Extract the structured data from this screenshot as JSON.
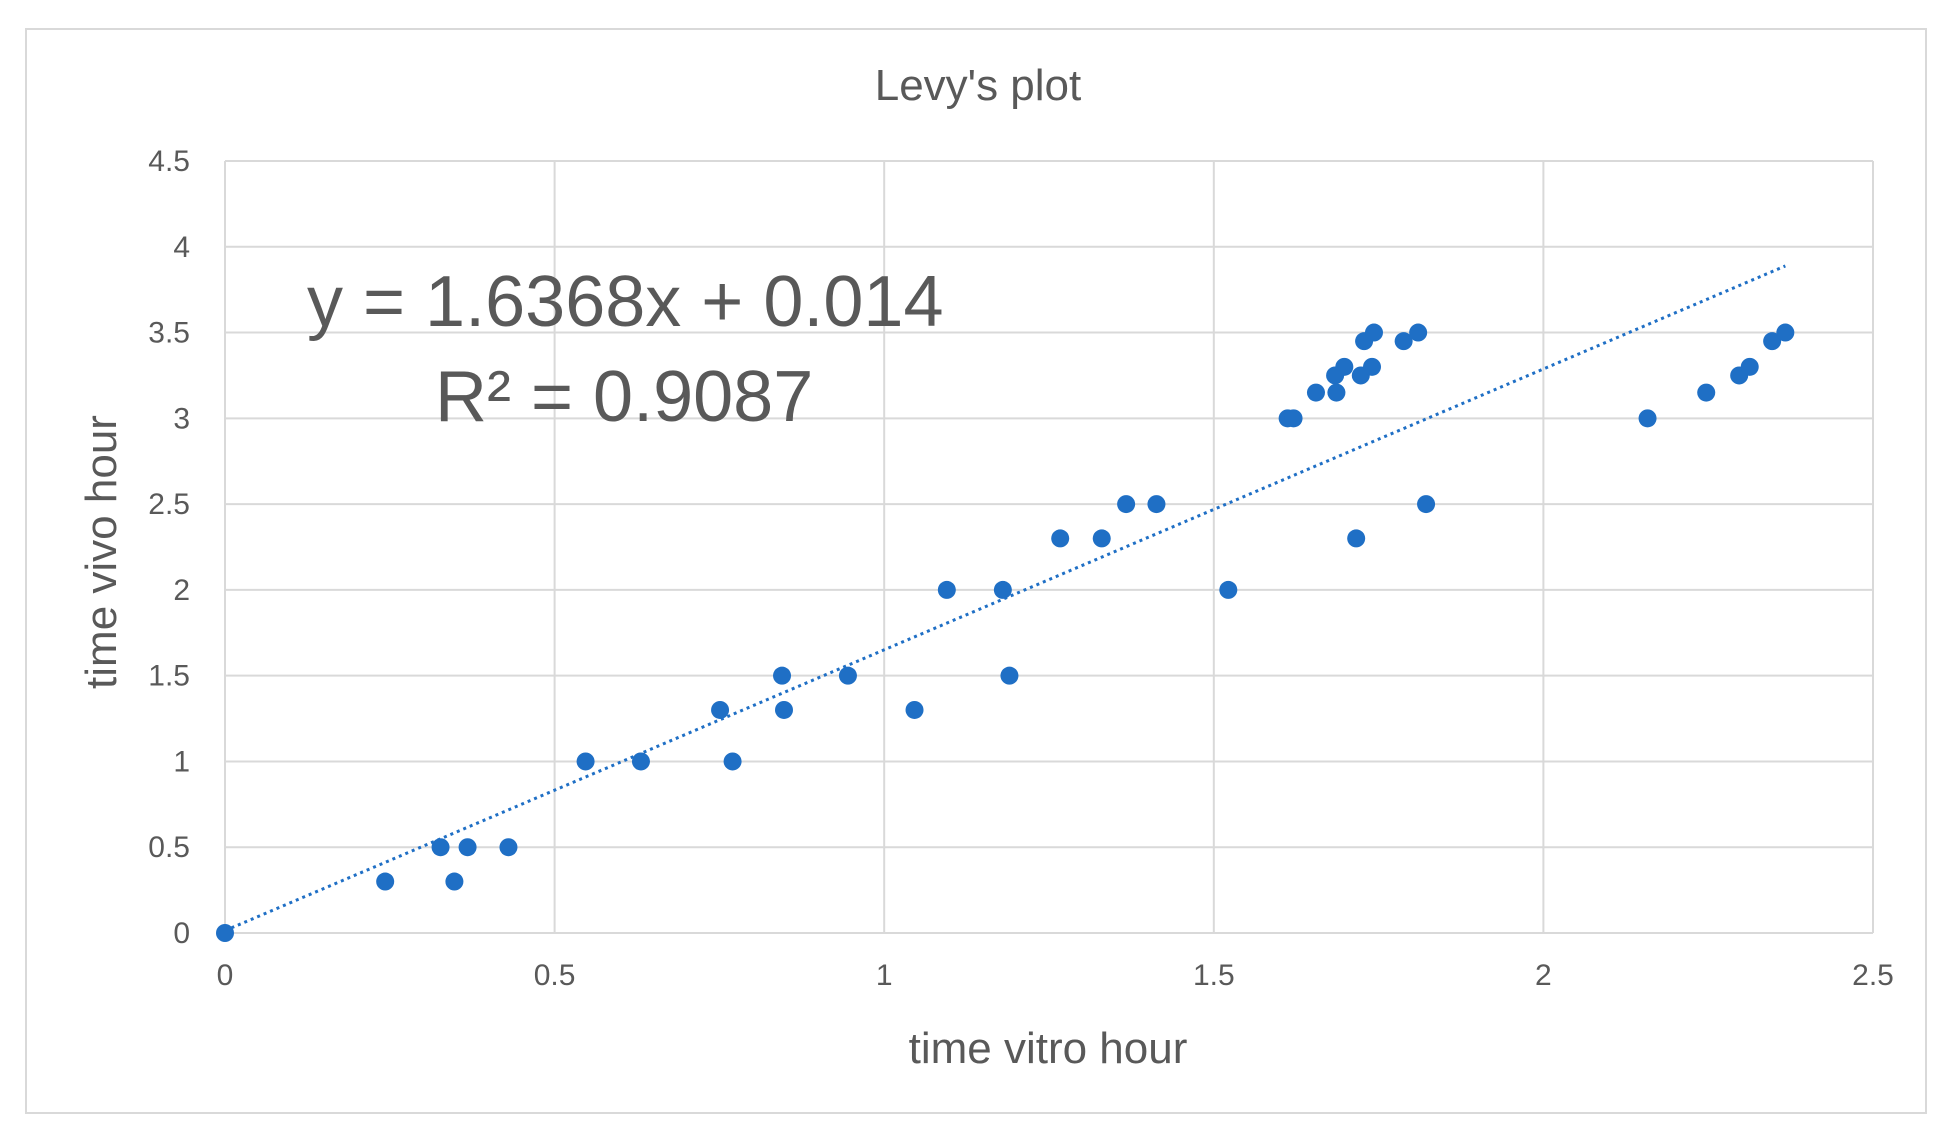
{
  "colors": {
    "series": "#1f6fc5",
    "grid": "#d9d9d9",
    "text": "#595959",
    "trendline": "#1f6fc5"
  },
  "chart_data": {
    "type": "scatter",
    "title": "Levy's plot",
    "xlabel": "time vitro hour",
    "ylabel": "time  vivo hour",
    "xlim": [
      0,
      2.5
    ],
    "ylim": [
      0,
      4.5
    ],
    "x_ticks": [
      "0",
      "0.5",
      "1",
      "1.5",
      "2",
      "2.5"
    ],
    "y_ticks": [
      "0",
      "0.5",
      "1",
      "1.5",
      "2",
      "2.5",
      "3",
      "3.5",
      "4",
      "4.5"
    ],
    "grid": true,
    "series": [
      {
        "points": [
          [
            0,
            0
          ],
          [
            0.243,
            0.3
          ],
          [
            0.327,
            0.5
          ],
          [
            0.348,
            0.3
          ],
          [
            0.368,
            0.5
          ],
          [
            0.43,
            0.5
          ],
          [
            0.547,
            1.0
          ],
          [
            0.631,
            1.0
          ],
          [
            0.751,
            1.3
          ],
          [
            0.77,
            1.0
          ],
          [
            0.845,
            1.5
          ],
          [
            0.848,
            1.3
          ],
          [
            0.945,
            1.5
          ],
          [
            1.046,
            1.3
          ],
          [
            1.095,
            2.0
          ],
          [
            1.18,
            2.0
          ],
          [
            1.19,
            1.5
          ],
          [
            1.267,
            2.3
          ],
          [
            1.33,
            2.3
          ],
          [
            1.367,
            2.5
          ],
          [
            1.413,
            2.5
          ],
          [
            1.522,
            2.0
          ],
          [
            1.612,
            3.0
          ],
          [
            1.621,
            3.0
          ],
          [
            1.655,
            3.15
          ],
          [
            1.684,
            3.25
          ],
          [
            1.686,
            3.15
          ],
          [
            1.698,
            3.3
          ],
          [
            1.716,
            2.3
          ],
          [
            1.723,
            3.25
          ],
          [
            1.728,
            3.45
          ],
          [
            1.74,
            3.3
          ],
          [
            1.743,
            3.5
          ],
          [
            1.788,
            3.45
          ],
          [
            1.81,
            3.5
          ],
          [
            1.822,
            2.5
          ],
          [
            2.158,
            3.0
          ],
          [
            2.247,
            3.15
          ],
          [
            2.297,
            3.25
          ],
          [
            2.313,
            3.3
          ],
          [
            2.347,
            3.45
          ],
          [
            2.367,
            3.5
          ]
        ]
      }
    ],
    "trendline": {
      "type": "linear",
      "slope": 1.6368,
      "intercept": 0.014,
      "x_range": [
        0,
        2.367
      ],
      "style": "dotted"
    },
    "annotations": {
      "equation": "y = 1.6368x + 0.014",
      "r2_label": "R² = 0.9087"
    }
  }
}
